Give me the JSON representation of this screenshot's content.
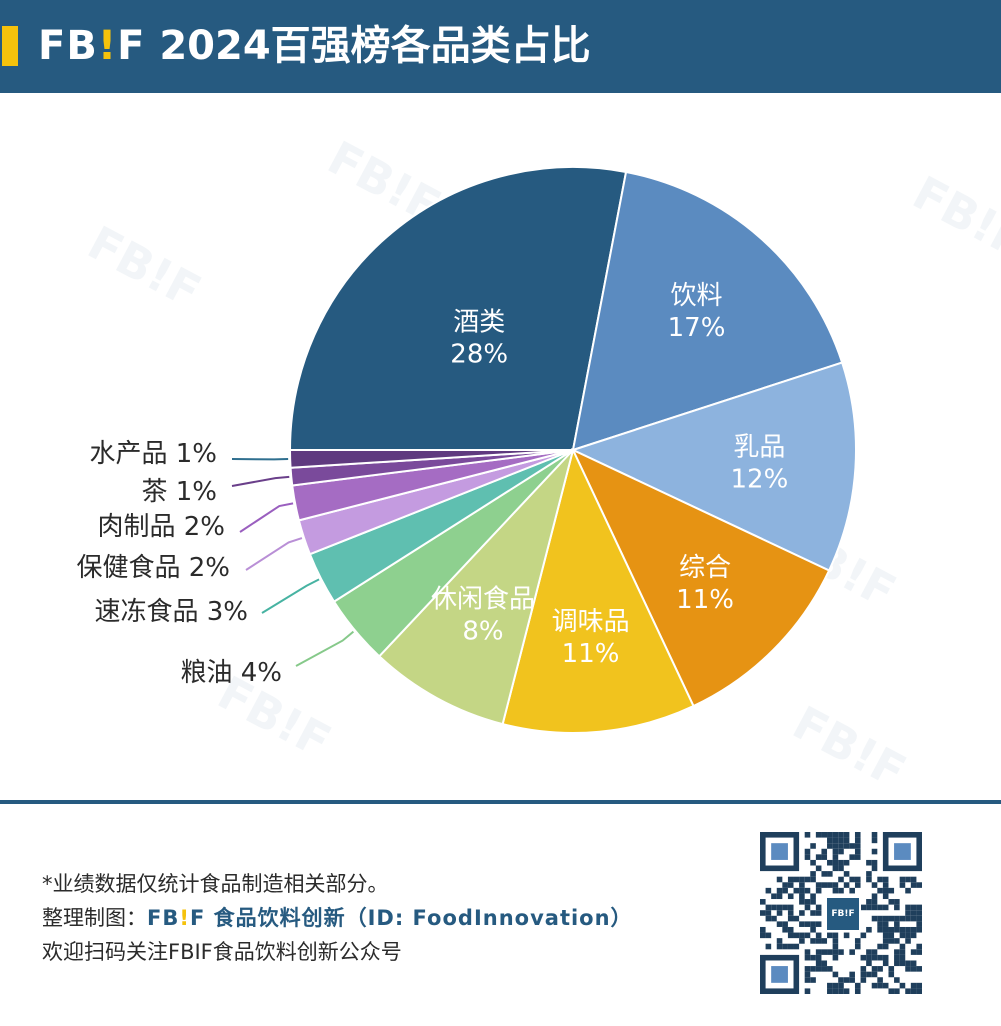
{
  "header": {
    "brand_fb": "FB",
    "brand_bang": "!",
    "brand_f": "F",
    "title": "2024百强榜各品类占比"
  },
  "watermark": "FB!F",
  "colors": {
    "header_bg": "#265a80",
    "accent_yellow": "#f5c20b"
  },
  "chart_data": {
    "type": "pie",
    "start": "9 o'clock, clockwise",
    "slices": [
      {
        "label": "酒类",
        "value": 28,
        "pct_label": "28%",
        "color": "#265a80",
        "label_placement": "inside"
      },
      {
        "label": "饮料",
        "value": 17,
        "pct_label": "17%",
        "color": "#5b8bc0",
        "label_placement": "inside"
      },
      {
        "label": "乳品",
        "value": 12,
        "pct_label": "12%",
        "color": "#8db3de",
        "label_placement": "inside"
      },
      {
        "label": "综合",
        "value": 11,
        "pct_label": "11%",
        "color": "#e69313",
        "label_placement": "inside"
      },
      {
        "label": "调味品",
        "value": 11,
        "pct_label": "11%",
        "color": "#f1c31e",
        "label_placement": "inside"
      },
      {
        "label": "休闲食品",
        "value": 8,
        "pct_label": "8%",
        "color": "#c4d685",
        "label_placement": "inside"
      },
      {
        "label": "粮油",
        "value": 4,
        "pct_label": "粮油 4%",
        "color": "#8ed08f",
        "label_placement": "outside"
      },
      {
        "label": "速冻食品",
        "value": 3,
        "pct_label": "速冻食品 3%",
        "color": "#5fbfb0",
        "label_placement": "outside"
      },
      {
        "label": "保健食品",
        "value": 2,
        "pct_label": "保健食品 2%",
        "color": "#c49be0",
        "label_placement": "outside"
      },
      {
        "label": "肉制品",
        "value": 2,
        "pct_label": "肉制品 2%",
        "color": "#a56cc3",
        "label_placement": "outside"
      },
      {
        "label": "茶",
        "value": 1,
        "pct_label": "茶 1%",
        "color": "#7a4a9b",
        "label_placement": "outside"
      },
      {
        "label": "水产品",
        "value": 1,
        "pct_label": "水产品 1%",
        "color": "#5f3a7f",
        "label_placement": "outside"
      }
    ],
    "leader_colors": {
      "水产品": "#2f6f8f",
      "茶": "#6a3f8a",
      "肉制品": "#9a5fbf",
      "保健食品": "#b98fd6",
      "速冻食品": "#47b3a2",
      "粮油": "#86c98a"
    }
  },
  "footer": {
    "note": "*业绩数据仅统计食品制造相关部分。",
    "credit_prefix": "整理制图：",
    "credit_brand_fb": "FB",
    "credit_brand_bang": "!",
    "credit_brand_f": "F",
    "credit_name": " 食品饮料创新（ID: FoodInnovation）",
    "follow": "欢迎扫码关注FBIF食品饮料创新公众号",
    "qr_logo": "FB!F"
  }
}
